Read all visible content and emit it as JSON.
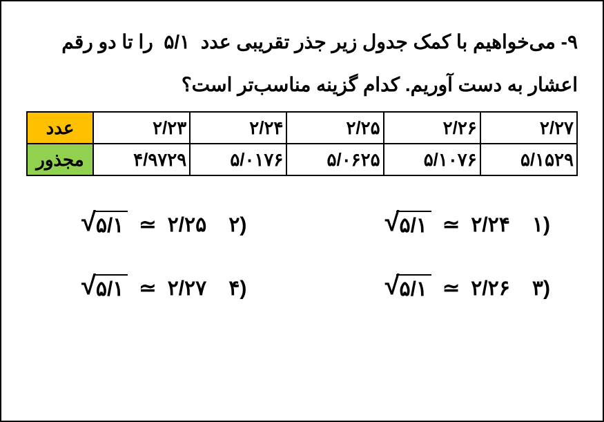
{
  "question": "۹- می‌خواهیم با کمک جدول زیر جذر تقریبی عدد  ۵/۱  را تا دو رقم اعشار به دست آوریم. کدام گزینه مناسب‌تر است؟",
  "table": {
    "header_num": "عدد",
    "header_sq": "مجذور",
    "numbers": [
      "۲/۲۳",
      "۲/۲۴",
      "۲/۲۵",
      "۲/۲۶",
      "۲/۲۷"
    ],
    "squares": [
      "۴/۹۷۲۹",
      "۵/۰۱۷۶",
      "۵/۰۶۲۵",
      "۵/۱۰۷۶",
      "۵/۱۵۲۹"
    ]
  },
  "sqrt_of": "۵/۱",
  "approx_sym": "≃",
  "options": {
    "o1": {
      "label": "(۱",
      "value": "۲/۲۴"
    },
    "o2": {
      "label": "(۲",
      "value": "۲/۲۵"
    },
    "o3": {
      "label": "(۳",
      "value": "۲/۲۶"
    },
    "o4": {
      "label": "(۴",
      "value": "۲/۲۷"
    }
  },
  "colors": {
    "header_num_bg": "#ffc000",
    "header_sq_bg": "#92d050",
    "border": "#000000",
    "text": "#000000",
    "background": "#ffffff"
  }
}
